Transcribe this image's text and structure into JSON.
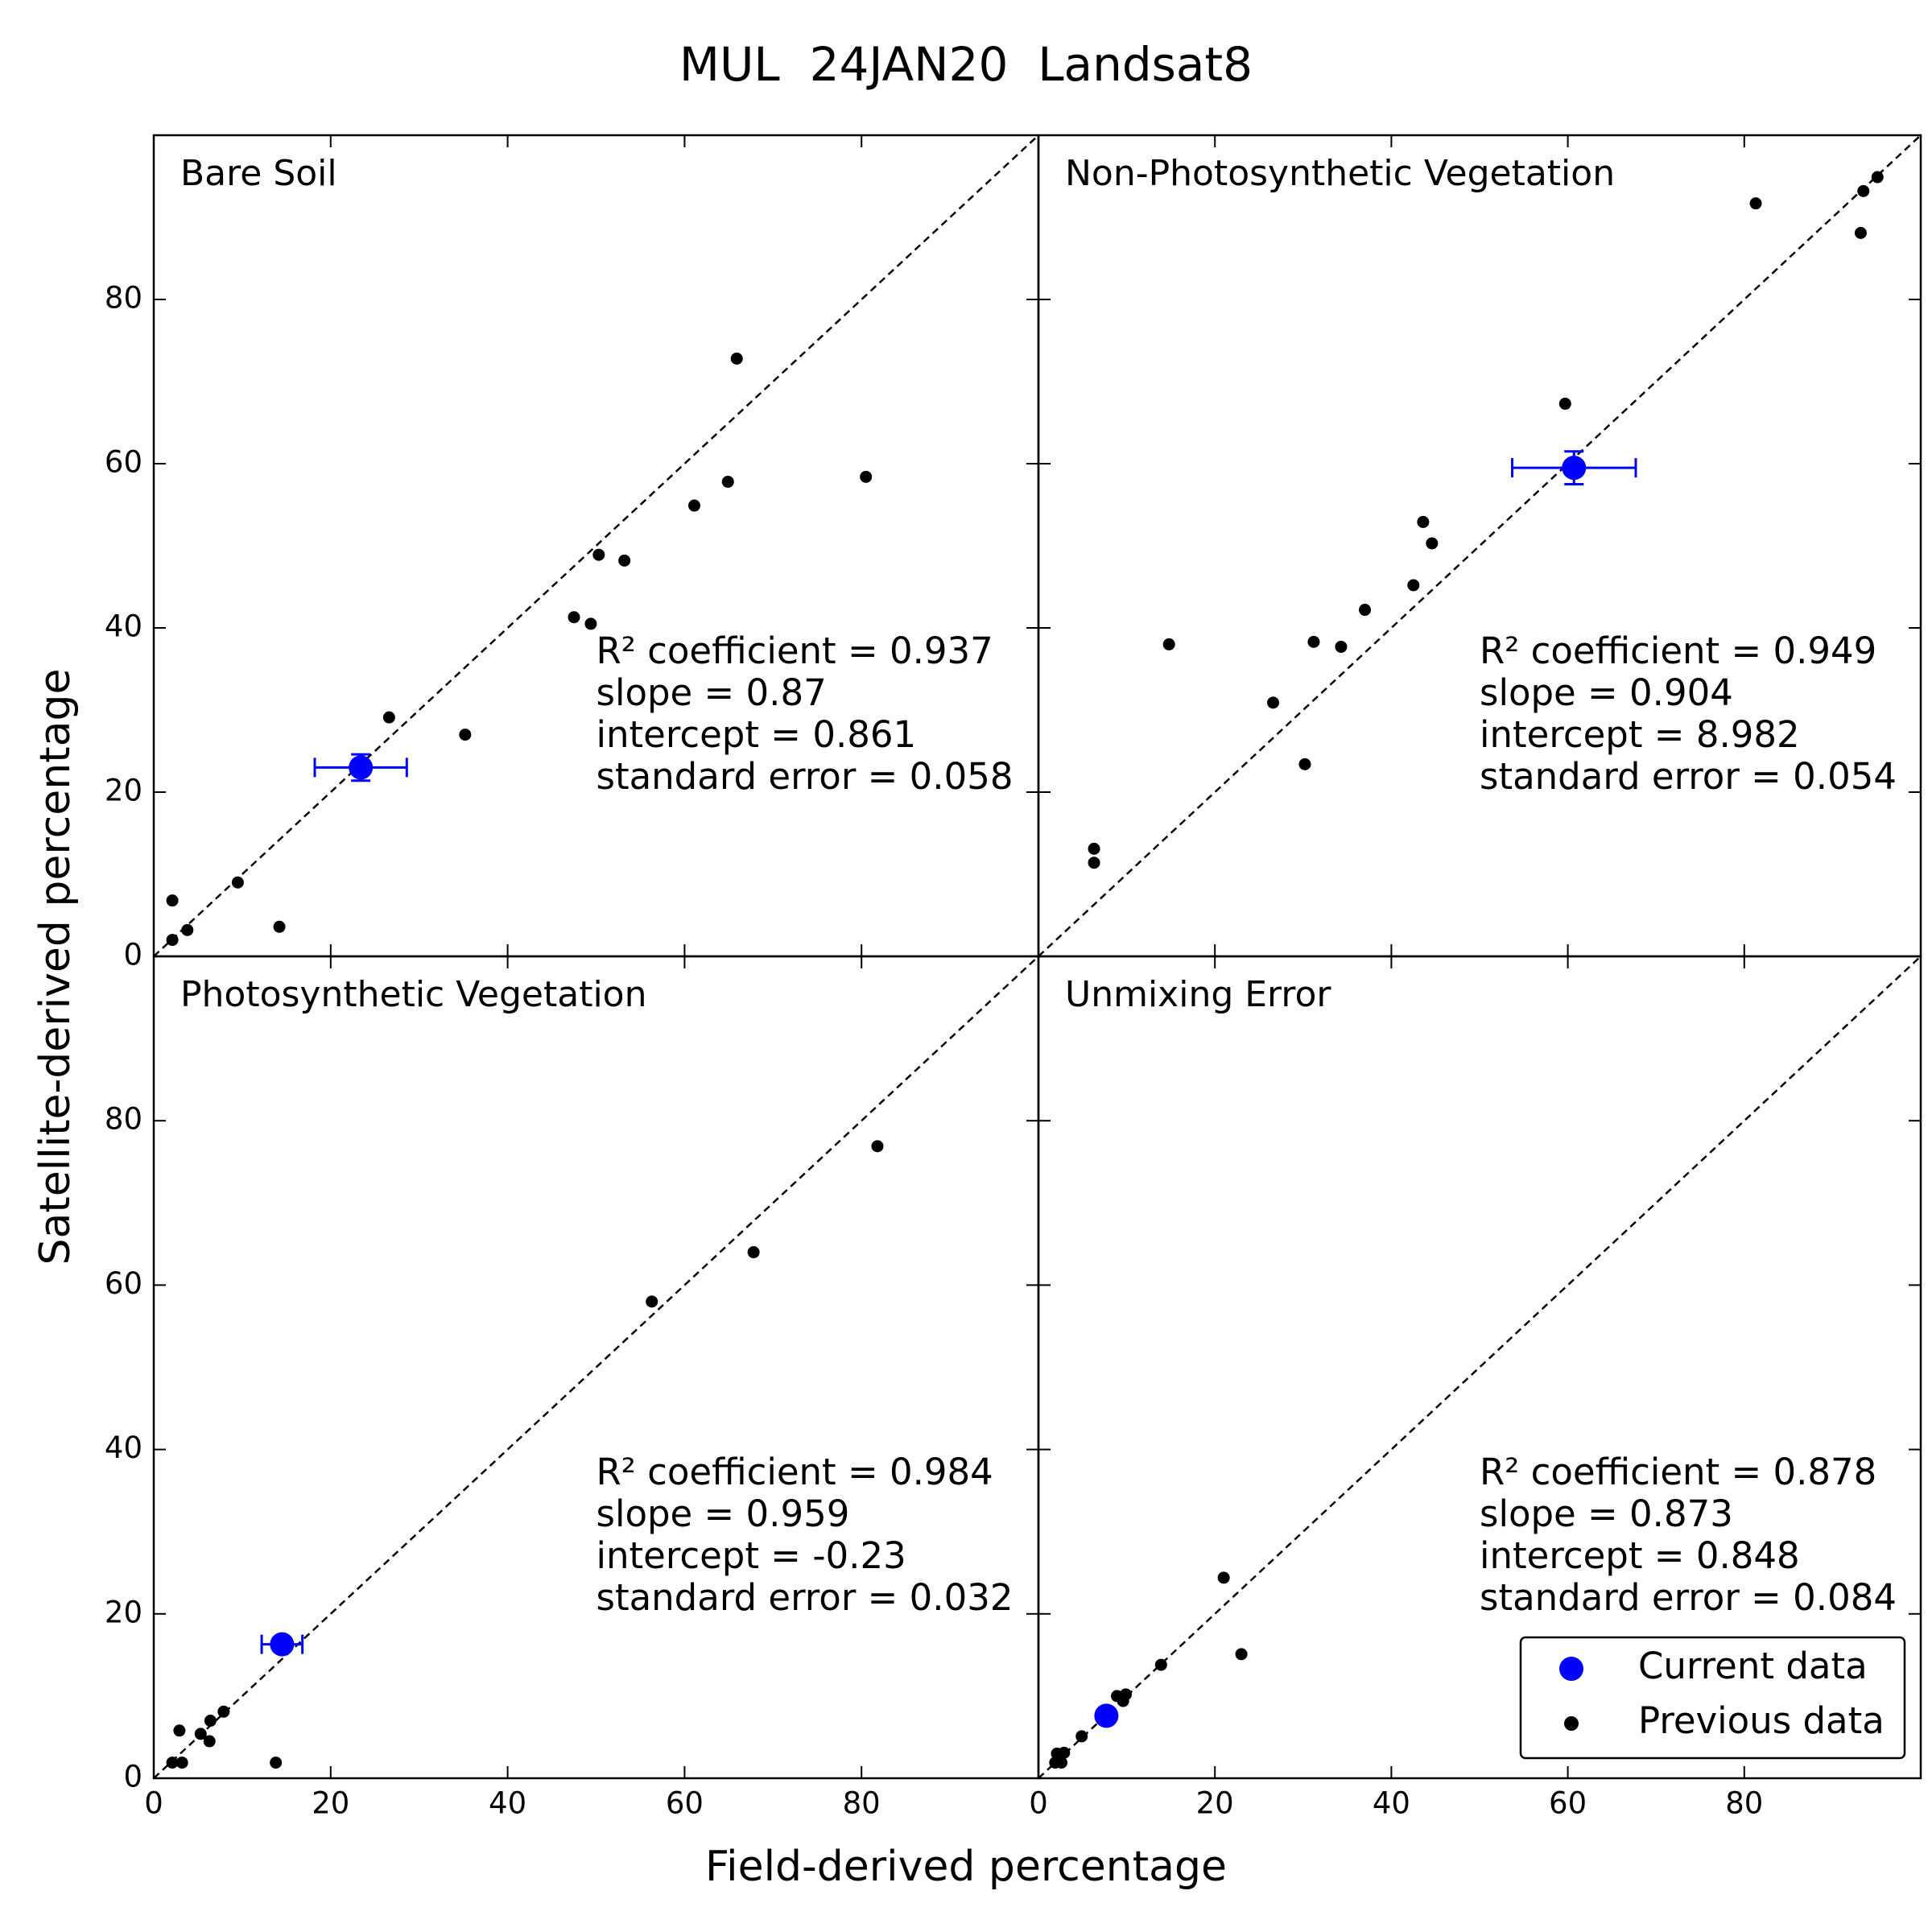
{
  "figure": {
    "title": "MUL  24JAN20  Landsat8",
    "x_label": "Field-derived percentage",
    "y_label": "Satellite-derived percentage"
  },
  "chart_data": [
    {
      "type": "scatter",
      "title": "Bare Soil",
      "annotations": [
        "R² coefficient = 0.937",
        "slope = 0.87",
        "intercept = 0.861",
        "standard error = 0.058"
      ],
      "xlim": [
        0,
        100
      ],
      "ylim": [
        0,
        100
      ],
      "xticks": [
        0,
        20,
        40,
        60,
        80
      ],
      "yticks": [
        0,
        20,
        40,
        60,
        80
      ],
      "xtick_labels": false,
      "ytick_labels": true,
      "identity_line": true,
      "series": [
        {
          "name": "Current data",
          "color": "#0000ff",
          "x": [
            23.4
          ],
          "values": [
            23.0
          ],
          "xerr": [
            5.2
          ],
          "yerr": [
            1.6
          ]
        },
        {
          "name": "Previous data",
          "color": "#000000",
          "x": [
            2.1,
            2.1,
            3.8,
            9.5,
            14.2,
            26.6,
            35.2,
            47.5,
            49.4,
            50.3,
            53.2,
            61.1,
            64.9,
            65.9,
            80.5
          ],
          "values": [
            6.8,
            2.0,
            3.2,
            9.0,
            3.6,
            29.1,
            27.0,
            41.3,
            40.5,
            48.9,
            48.2,
            54.9,
            57.8,
            72.8,
            58.4
          ]
        }
      ]
    },
    {
      "type": "scatter",
      "title": "Non-Photosynthetic Vegetation",
      "annotations": [
        "R² coefficient = 0.949",
        "slope = 0.904",
        "intercept = 8.982",
        "standard error = 0.054"
      ],
      "xlim": [
        0,
        100
      ],
      "ylim": [
        0,
        100
      ],
      "xticks": [
        0,
        20,
        40,
        60,
        80
      ],
      "yticks": [
        0,
        20,
        40,
        60,
        80
      ],
      "xtick_labels": false,
      "ytick_labels": false,
      "identity_line": true,
      "series": [
        {
          "name": "Current data",
          "color": "#0000ff",
          "x": [
            60.7
          ],
          "values": [
            59.5
          ],
          "xerr": [
            7.0
          ],
          "yerr": [
            2.0
          ]
        },
        {
          "name": "Previous data",
          "color": "#000000",
          "x": [
            6.3,
            6.3,
            14.8,
            26.6,
            30.2,
            31.2,
            34.3,
            37.0,
            42.5,
            43.6,
            44.6,
            59.7,
            81.3,
            93.2,
            93.5,
            95.1
          ],
          "values": [
            13.1,
            11.4,
            38.0,
            30.9,
            23.4,
            38.3,
            37.7,
            42.2,
            45.2,
            52.9,
            50.3,
            67.3,
            91.7,
            88.1,
            93.2,
            94.9
          ]
        }
      ]
    },
    {
      "type": "scatter",
      "title": "Photosynthetic Vegetation",
      "annotations": [
        "R² coefficient = 0.984",
        "slope = 0.959",
        "intercept = -0.23",
        "standard error = 0.032"
      ],
      "xlim": [
        0,
        100
      ],
      "ylim": [
        0,
        100
      ],
      "xticks": [
        0,
        20,
        40,
        60,
        80
      ],
      "yticks": [
        0,
        20,
        40,
        60,
        80
      ],
      "xtick_labels": true,
      "ytick_labels": true,
      "identity_line": true,
      "series": [
        {
          "name": "Current data",
          "color": "#0000ff",
          "x": [
            14.5
          ],
          "values": [
            16.3
          ],
          "xerr": [
            2.3
          ]
        },
        {
          "name": "Previous data",
          "color": "#000000",
          "x": [
            2.1,
            3.2,
            2.9,
            5.3,
            6.3,
            6.4,
            7.9,
            13.8,
            56.3,
            67.8,
            81.8
          ],
          "values": [
            1.9,
            1.9,
            5.8,
            5.4,
            4.5,
            7.0,
            8.1,
            1.9,
            58.0,
            64.0,
            76.9
          ]
        }
      ]
    },
    {
      "type": "scatter",
      "title": "Unmixing Error",
      "annotations": [
        "R² coefficient = 0.878",
        "slope = 0.873",
        "intercept = 0.848",
        "standard error = 0.084"
      ],
      "xlim": [
        0,
        100
      ],
      "ylim": [
        0,
        100
      ],
      "xticks": [
        0,
        20,
        40,
        60,
        80
      ],
      "yticks": [
        0,
        20,
        40,
        60,
        80
      ],
      "xtick_labels": true,
      "ytick_labels": false,
      "identity_line": true,
      "legend": "lower right",
      "series": [
        {
          "name": "Current data",
          "color": "#0000ff",
          "x": [
            7.7
          ],
          "values": [
            7.6
          ]
        },
        {
          "name": "Previous data",
          "color": "#000000",
          "x": [
            1.9,
            2.6,
            2.1,
            2.9,
            4.9,
            8.9,
            9.6,
            9.9,
            13.9,
            21.0,
            23.0
          ],
          "values": [
            1.9,
            1.9,
            3.0,
            3.1,
            5.1,
            10.0,
            9.4,
            10.2,
            13.8,
            24.4,
            15.1
          ]
        }
      ]
    }
  ]
}
